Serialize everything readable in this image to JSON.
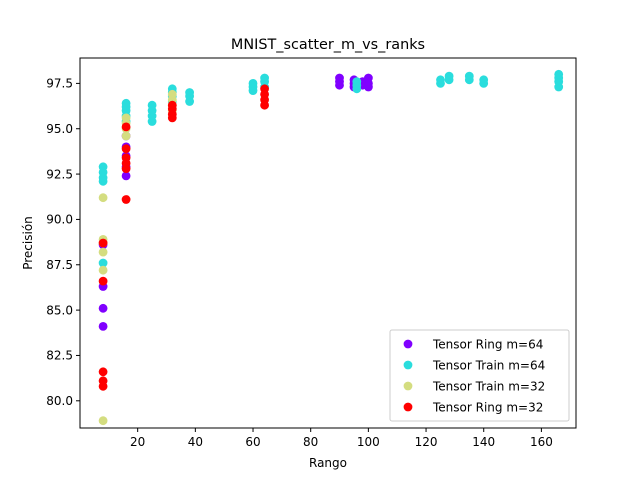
{
  "chart_data": {
    "type": "scatter",
    "title": "MNIST_scatter_m_vs_ranks",
    "xlabel": "Rango",
    "ylabel": "Precisión",
    "xlim": [
      0,
      172
    ],
    "ylim": [
      78.5,
      98.9
    ],
    "xticks": [
      20,
      40,
      60,
      80,
      100,
      120,
      140,
      160
    ],
    "yticks": [
      80.0,
      82.5,
      85.0,
      87.5,
      90.0,
      92.5,
      95.0,
      97.5
    ],
    "grid": false,
    "legend_position": "bottom-right",
    "series": [
      {
        "name": "Tensor Ring m=64",
        "color": "#8000ff",
        "points": [
          [
            8,
            84.1
          ],
          [
            8,
            85.1
          ],
          [
            8,
            86.3
          ],
          [
            8,
            88.6
          ],
          [
            16,
            92.4
          ],
          [
            16,
            92.9
          ],
          [
            16,
            93.5
          ],
          [
            16,
            94.0
          ],
          [
            16,
            94.6
          ],
          [
            90,
            97.4
          ],
          [
            90,
            97.6
          ],
          [
            90,
            97.8
          ],
          [
            95,
            97.3
          ],
          [
            95,
            97.5
          ],
          [
            95,
            97.7
          ],
          [
            98,
            97.4
          ],
          [
            98,
            97.6
          ],
          [
            100,
            97.3
          ],
          [
            100,
            97.5
          ],
          [
            100,
            97.8
          ]
        ]
      },
      {
        "name": "Tensor Train m=64",
        "color": "#2adddd",
        "points": [
          [
            8,
            92.1
          ],
          [
            8,
            92.3
          ],
          [
            8,
            92.6
          ],
          [
            8,
            92.9
          ],
          [
            8,
            87.6
          ],
          [
            16,
            95.4
          ],
          [
            16,
            95.7
          ],
          [
            16,
            96.0
          ],
          [
            16,
            96.2
          ],
          [
            16,
            96.4
          ],
          [
            25,
            95.4
          ],
          [
            25,
            95.7
          ],
          [
            25,
            96.0
          ],
          [
            25,
            96.3
          ],
          [
            32,
            96.5
          ],
          [
            32,
            96.8
          ],
          [
            32,
            97.0
          ],
          [
            32,
            97.2
          ],
          [
            38,
            96.5
          ],
          [
            38,
            96.8
          ],
          [
            38,
            97.0
          ],
          [
            60,
            97.1
          ],
          [
            60,
            97.3
          ],
          [
            60,
            97.5
          ],
          [
            64,
            97.3
          ],
          [
            64,
            97.6
          ],
          [
            64,
            97.8
          ],
          [
            96,
            97.2
          ],
          [
            96,
            97.4
          ],
          [
            96,
            97.6
          ],
          [
            125,
            97.5
          ],
          [
            125,
            97.7
          ],
          [
            128,
            97.7
          ],
          [
            128,
            97.9
          ],
          [
            135,
            97.7
          ],
          [
            135,
            97.9
          ],
          [
            140,
            97.5
          ],
          [
            140,
            97.7
          ],
          [
            166,
            97.3
          ],
          [
            166,
            97.6
          ],
          [
            166,
            97.8
          ],
          [
            166,
            98.0
          ]
        ]
      },
      {
        "name": "Tensor Train m=32",
        "color": "#d4dd80",
        "points": [
          [
            8,
            78.9
          ],
          [
            8,
            87.2
          ],
          [
            8,
            88.2
          ],
          [
            8,
            88.7
          ],
          [
            8,
            88.9
          ],
          [
            8,
            91.2
          ],
          [
            16,
            94.6
          ],
          [
            16,
            95.0
          ],
          [
            16,
            95.3
          ],
          [
            16,
            95.6
          ],
          [
            32,
            96.0
          ],
          [
            32,
            96.3
          ],
          [
            32,
            96.6
          ],
          [
            32,
            96.9
          ]
        ]
      },
      {
        "name": "Tensor Ring m=32",
        "color": "#ff0000",
        "points": [
          [
            8,
            80.8
          ],
          [
            8,
            81.1
          ],
          [
            8,
            81.6
          ],
          [
            8,
            86.6
          ],
          [
            8,
            88.7
          ],
          [
            16,
            91.1
          ],
          [
            16,
            92.8
          ],
          [
            16,
            93.1
          ],
          [
            16,
            93.4
          ],
          [
            16,
            93.9
          ],
          [
            16,
            95.1
          ],
          [
            32,
            95.6
          ],
          [
            32,
            95.8
          ],
          [
            32,
            96.1
          ],
          [
            32,
            96.3
          ],
          [
            64,
            96.3
          ],
          [
            64,
            96.6
          ],
          [
            64,
            96.9
          ],
          [
            64,
            97.2
          ]
        ]
      }
    ]
  }
}
